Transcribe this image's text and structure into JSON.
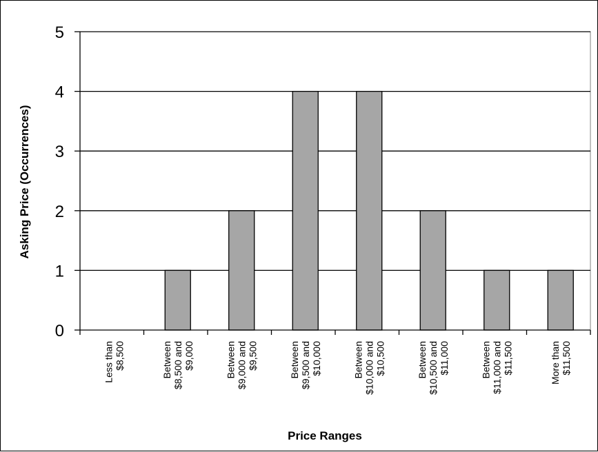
{
  "chart_data": {
    "type": "bar",
    "title": "",
    "xlabel": "Price Ranges",
    "ylabel": "Asking Price (Occurrences)",
    "ylim": [
      0,
      5
    ],
    "yticks": [
      0,
      1,
      2,
      3,
      4,
      5
    ],
    "grid": true,
    "legend": "none",
    "bar_color": "#a6a6a6",
    "categories": [
      [
        "Less than",
        "$8,500"
      ],
      [
        "Between",
        "$8,500 and",
        "$9,000"
      ],
      [
        "Between",
        "$9,000 and",
        "$9,500"
      ],
      [
        "Between",
        "$9,500 and",
        "$10,000"
      ],
      [
        "Between",
        "$10,000 and",
        "$10,500"
      ],
      [
        "Between",
        "$10,500 and",
        "$11,000"
      ],
      [
        "Between",
        "$11,000 and",
        "$11,500"
      ],
      [
        "More than",
        "$11,500"
      ]
    ],
    "values": [
      0,
      1,
      2,
      4,
      4,
      2,
      1,
      1
    ]
  }
}
